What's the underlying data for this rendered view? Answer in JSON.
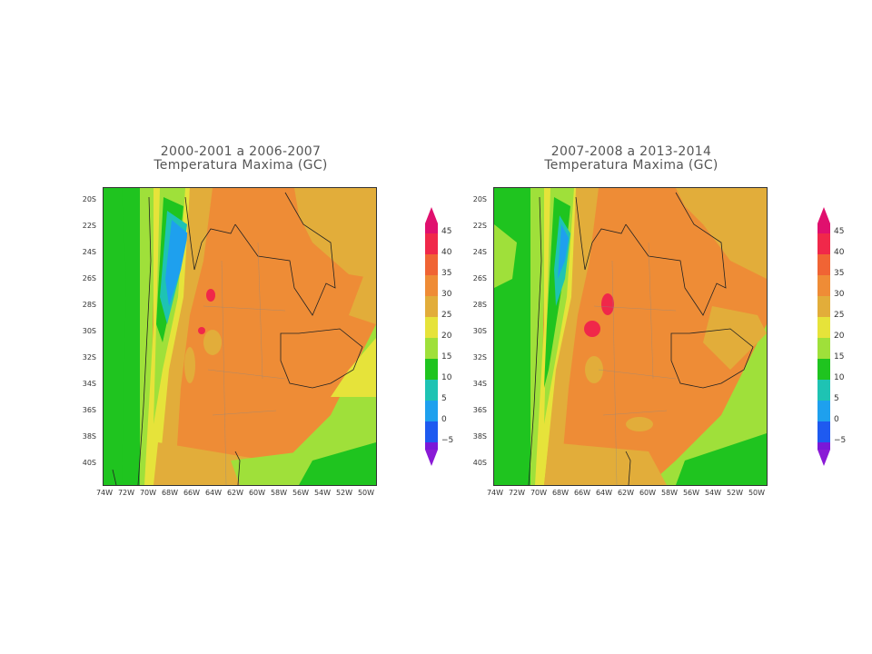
{
  "panels": [
    {
      "title_line1": "2000-2001 a 2006-2007",
      "title_line2": "Temperatura Maxima (GC)"
    },
    {
      "title_line1": "2007-2008 a 2013-2014",
      "title_line2": "Temperatura Maxima (GC)"
    }
  ],
  "lat_labels": [
    "20S",
    "22S",
    "24S",
    "26S",
    "28S",
    "30S",
    "32S",
    "34S",
    "36S",
    "38S",
    "40S"
  ],
  "lon_labels": [
    "74W",
    "72W",
    "70W",
    "68W",
    "66W",
    "64W",
    "62W",
    "60W",
    "58W",
    "56W",
    "54W",
    "52W",
    "50W"
  ],
  "colorbar": {
    "labels": [
      "45",
      "40",
      "35",
      "30",
      "25",
      "20",
      "15",
      "10",
      "5",
      "0",
      "−5"
    ],
    "colors": [
      "#f0284a",
      "#f06434",
      "#ef8c36",
      "#e2ad3a",
      "#e6e33a",
      "#9fe03a",
      "#1fc41f",
      "#1ec3b3",
      "#1ea0ee",
      "#1e5af0",
      "#3a1ee0",
      "#7a18d8"
    ]
  },
  "legend_labels": {
    "c45": "45",
    "c40": "40",
    "c35": "35",
    "c30": "30",
    "c25": "25",
    "c20": "20",
    "c15": "15",
    "c10": "10",
    "c5": "5",
    "c0": "0",
    "cm5": "−5"
  }
}
